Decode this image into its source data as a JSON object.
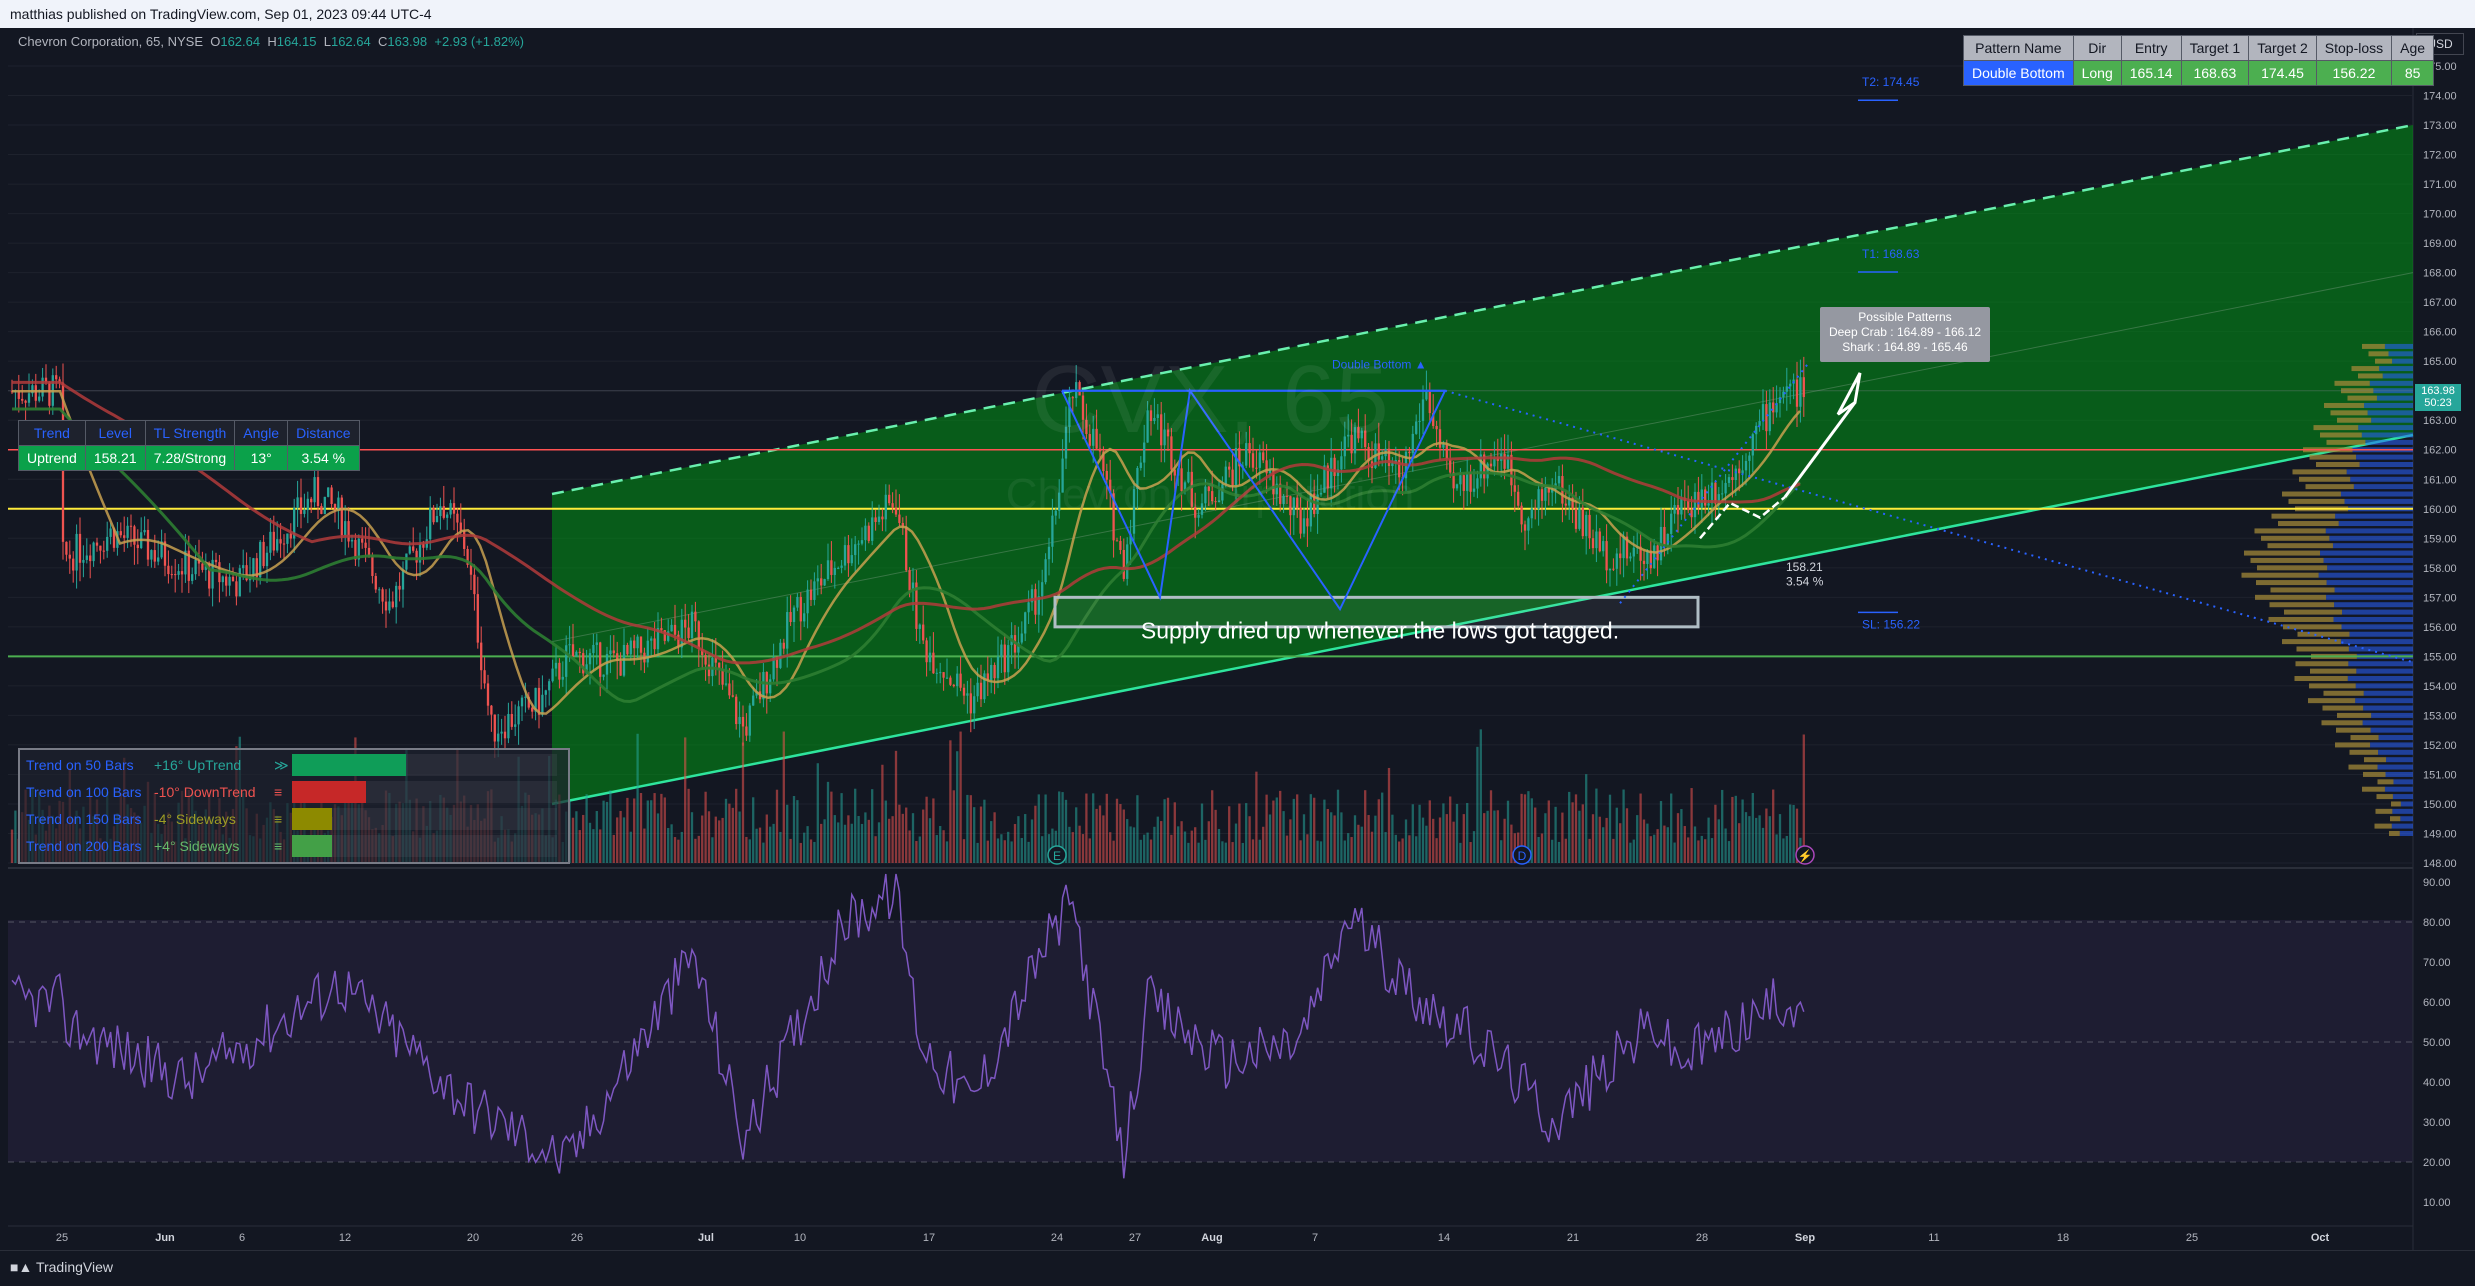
{
  "header": {
    "publish_text": "matthias published on TradingView.com, Sep 01, 2023 09:44 UTC-4"
  },
  "symbol": {
    "name": "Chevron Corporation, 65, NYSE",
    "o_label": "O",
    "o": "162.64",
    "h_label": "H",
    "h": "164.15",
    "l_label": "L",
    "l": "162.64",
    "c_label": "C",
    "c": "163.98",
    "change": "+2.93 (+1.82%)",
    "watermark_ticker": "CVX, 65",
    "watermark_name": "Chevron Corporation"
  },
  "currency": "USD",
  "last_price": {
    "value": "163.98",
    "countdown": "50:23"
  },
  "pattern_table": {
    "headers": [
      "Pattern Name",
      "Dir",
      "Entry",
      "Target 1",
      "Target 2",
      "Stop-loss",
      "Age"
    ],
    "row": [
      "Double Bottom",
      "Long",
      "165.14",
      "168.63",
      "174.45",
      "156.22",
      "85"
    ]
  },
  "trendline_table": {
    "headers": [
      "Trend",
      "Level",
      "TL Strength",
      "Angle",
      "Distance"
    ],
    "row": [
      "Uptrend",
      "158.21",
      "7.28/Strong",
      "13°",
      "3.54 %"
    ]
  },
  "trend_summary": [
    {
      "name": "Trend on 50 Bars",
      "value": "+16° UpTrend",
      "symbol": "≫",
      "color": "#26a69a",
      "bar_color": "#0f9d58",
      "fill": 0.95
    },
    {
      "name": "Trend on 100 Bars",
      "value": "-10° DownTrend",
      "symbol": "≡",
      "color": "#ef5350",
      "bar_color": "#c62828",
      "fill": 0.62
    },
    {
      "name": "Trend on 150 Bars",
      "value": "-4° Sideways",
      "symbol": "≡",
      "color": "#9e9d24",
      "bar_color": "#8d8a00",
      "fill": 0.33
    },
    {
      "name": "Trend on 200 Bars",
      "value": "+4° Sideways",
      "symbol": "≡",
      "color": "#66bb6a",
      "bar_color": "#43a047",
      "fill": 0.33
    }
  ],
  "annotations": {
    "t2": "T2: 174.45",
    "t1": "T1: 168.63",
    "sl": "SL: 156.22",
    "pattern_label": "Double Bottom ▲",
    "possible_title": "Possible Patterns",
    "possible_1": "Deep Crab : 164.89 - 166.12",
    "possible_2": "Shark : 164.89 - 165.46",
    "tl_level": "158.21",
    "tl_distance": "3.54 %",
    "note": "Supply dried up whenever the lows got tagged.",
    "event_e": "E",
    "event_d": "D",
    "event_flash": "⚡"
  },
  "price_axis": [
    "175.00",
    "174.00",
    "173.00",
    "172.00",
    "171.00",
    "170.00",
    "169.00",
    "168.00",
    "167.00",
    "166.00",
    "165.00",
    "164.00",
    "163.00",
    "162.00",
    "161.00",
    "160.00",
    "159.00",
    "158.00",
    "157.00",
    "156.00",
    "155.00",
    "154.00",
    "153.00",
    "152.00",
    "151.00",
    "150.00",
    "149.00",
    "148.00"
  ],
  "rsi_axis": [
    "90.00",
    "80.00",
    "70.00",
    "60.00",
    "50.00",
    "40.00",
    "30.00",
    "20.00",
    "10.00"
  ],
  "time_axis": [
    "25",
    "Jun",
    "6",
    "12",
    "20",
    "26",
    "Jul",
    "10",
    "17",
    "24",
    "27",
    "Aug",
    "7",
    "14",
    "21",
    "28",
    "Sep",
    "11",
    "18",
    "25",
    "Oct"
  ],
  "footer": {
    "brand": "TradingView"
  },
  "chart_data": [
    {
      "type": "candlestick",
      "title": "Chevron Corporation, 65, NYSE",
      "ylim": [
        148,
        175
      ],
      "levels": {
        "horizontal_red": 162.0,
        "horizontal_yellow": 160.0,
        "horizontal_green": 155.0,
        "double_bottom_top": 164.0,
        "double_bottom_lows": [
          157.0,
          156.6
        ],
        "supply_box": [
          156.0,
          157.0
        ],
        "target_1": 168.63,
        "target_2": 174.45,
        "stop_loss": 156.22,
        "entry": 165.14,
        "trendline_level": 158.21
      },
      "channel": {
        "lower": [
          [
            "Jun 23",
            150.0
          ],
          [
            "Oct 6",
            162.5
          ]
        ],
        "upper": [
          [
            "Jun 23",
            160.5
          ],
          [
            "Oct 6",
            173.0
          ]
        ]
      },
      "price_path": [
        [
          "May 25",
          158.3
        ],
        [
          "May 30",
          159.2
        ],
        [
          "Jun 2",
          158.0
        ],
        [
          "Jun 6",
          157.5
        ],
        [
          "Jun 9",
          160.5
        ],
        [
          "Jun 12",
          159.8
        ],
        [
          "Jun 14",
          156.8
        ],
        [
          "Jun 16",
          160.3
        ],
        [
          "Jun 20",
          158.7
        ],
        [
          "Jun 21",
          152.5
        ],
        [
          "Jun 23",
          153.5
        ],
        [
          "Jun 26",
          155.0
        ],
        [
          "Jun 28",
          154.8
        ],
        [
          "Jul 3",
          156.0
        ],
        [
          "Jul 6",
          152.5
        ],
        [
          "Jul 10",
          156.5
        ],
        [
          "Jul 12",
          158.5
        ],
        [
          "Jul 14",
          160.3
        ],
        [
          "Jul 17",
          155.5
        ],
        [
          "Jul 19",
          153.5
        ],
        [
          "Jul 21",
          155.8
        ],
        [
          "Jul 24",
          158.0
        ],
        [
          "Jul 25",
          164.0
        ],
        [
          "Jul 26",
          162.0
        ],
        [
          "Jul 27",
          158.0
        ],
        [
          "Jul 28",
          163.5
        ],
        [
          "Aug 1",
          160.0
        ],
        [
          "Aug 3",
          162.0
        ],
        [
          "Aug 7",
          159.5
        ],
        [
          "Aug 9",
          162.5
        ],
        [
          "Aug 11",
          161.0
        ],
        [
          "Aug 14",
          164.0
        ],
        [
          "Aug 15",
          160.5
        ],
        [
          "Aug 17",
          162.0
        ],
        [
          "Aug 18",
          159.5
        ],
        [
          "Aug 21",
          161.0
        ],
        [
          "Aug 23",
          158.5
        ],
        [
          "Aug 25",
          158.5
        ],
        [
          "Aug 28",
          160.0
        ],
        [
          "Aug 30",
          161.0
        ],
        [
          "Sep 1",
          163.98
        ]
      ]
    },
    {
      "type": "line",
      "title": "RSI",
      "ylim": [
        0,
        100
      ],
      "levels": [
        80,
        50,
        20
      ],
      "x": [
        "May 25",
        "Jun 2",
        "Jun 12",
        "Jun 20",
        "Jun 26",
        "Jul 3",
        "Jul 6",
        "Jul 12",
        "Jul 14",
        "Jul 17",
        "Jul 19",
        "Jul 24",
        "Jul 25",
        "Jul 27",
        "Jul 28",
        "Aug 2",
        "Aug 7",
        "Aug 9",
        "Aug 11",
        "Aug 14",
        "Aug 17",
        "Aug 21",
        "Aug 25",
        "Aug 28",
        "Sep 1"
      ],
      "values": [
        55,
        40,
        65,
        35,
        20,
        72,
        25,
        80,
        88,
        50,
        35,
        75,
        85,
        20,
        60,
        45,
        50,
        82,
        65,
        60,
        45,
        30,
        55,
        45,
        60
      ]
    }
  ]
}
